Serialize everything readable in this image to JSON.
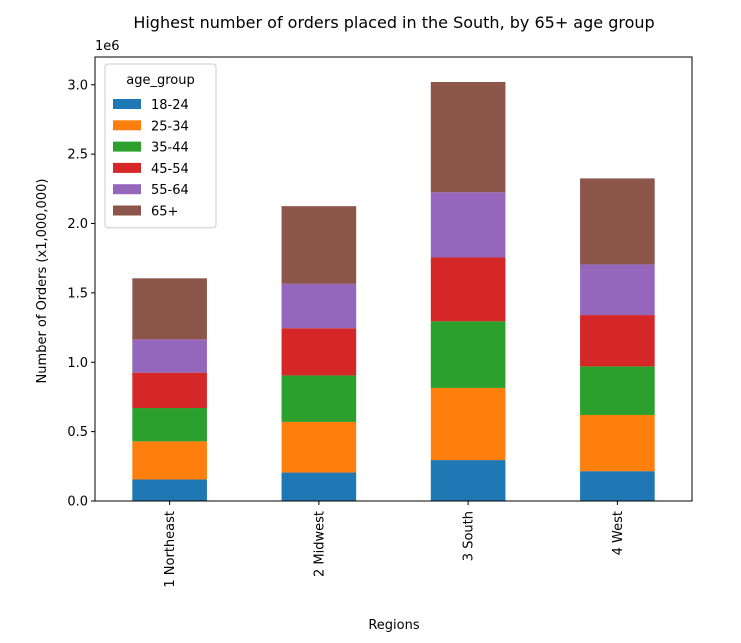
{
  "chart_data": {
    "type": "bar",
    "stacked": true,
    "title": "Highest number of orders placed in the South, by 65+ age group",
    "xlabel": "Regions",
    "ylabel": "Number of Orders (x1,000,000)",
    "y_offset_text": "1e6",
    "ylim": [
      0,
      3200000
    ],
    "yticks": [
      0,
      500000,
      1000000,
      1500000,
      2000000,
      2500000,
      3000000
    ],
    "ytick_labels": [
      "0.0",
      "0.5",
      "1.0",
      "1.5",
      "2.0",
      "2.5",
      "3.0"
    ],
    "categories": [
      "1 Northeast",
      "2 Midwest",
      "3 South",
      "4 West"
    ],
    "legend": {
      "title": "age_group",
      "placement": "upper-left"
    },
    "grid": false,
    "series": [
      {
        "name": "18-24",
        "color": "#1f77b4",
        "values": [
          155000,
          205000,
          295000,
          215000
        ]
      },
      {
        "name": "25-34",
        "color": "#ff7f0e",
        "values": [
          275000,
          365000,
          520000,
          405000
        ]
      },
      {
        "name": "35-44",
        "color": "#2ca02c",
        "values": [
          240000,
          335000,
          480000,
          350000
        ]
      },
      {
        "name": "45-54",
        "color": "#d62728",
        "values": [
          255000,
          340000,
          460000,
          370000
        ]
      },
      {
        "name": "55-64",
        "color": "#9467bd",
        "values": [
          240000,
          320000,
          470000,
          365000
        ]
      },
      {
        "name": "65+",
        "color": "#8c564b",
        "values": [
          440000,
          560000,
          795000,
          620000
        ]
      }
    ]
  }
}
